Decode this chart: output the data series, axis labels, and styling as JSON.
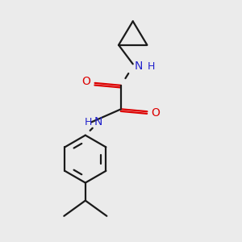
{
  "background_color": "#ebebeb",
  "bond_color": "#1a1a1a",
  "N_color": "#2222cc",
  "O_color": "#dd0000",
  "font_size": 10,
  "line_width": 1.6,
  "figsize": [
    3.0,
    3.0
  ],
  "dpi": 100,
  "xlim": [
    0,
    10
  ],
  "ylim": [
    0,
    10
  ]
}
